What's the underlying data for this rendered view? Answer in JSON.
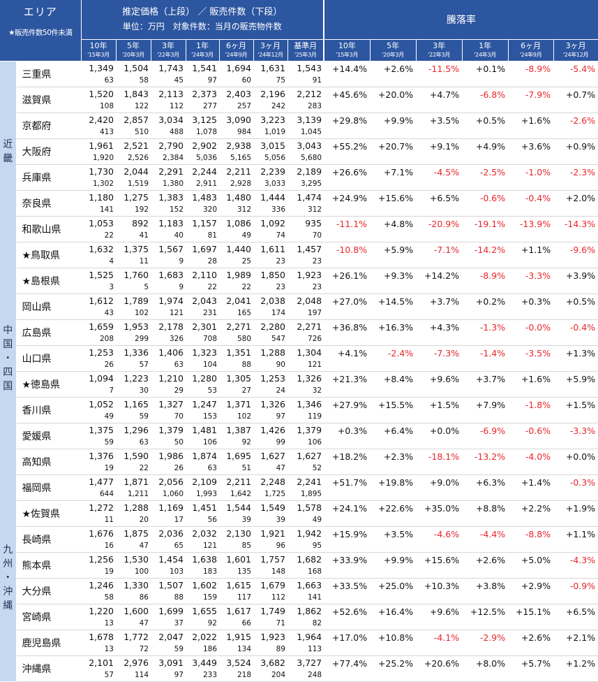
{
  "header": {
    "area_title": "エリア",
    "area_note": "★販売件数50件未満",
    "price_title": "推定価格（上段） ／ 販売件数（下段）",
    "price_unit": "単位：万円　対象件数：当月の販売物件数",
    "rate_title": "騰落率",
    "price_periods": [
      {
        "label": "10年",
        "sub": "'15年3月"
      },
      {
        "label": "5年",
        "sub": "'20年3月"
      },
      {
        "label": "3年",
        "sub": "'22年3月"
      },
      {
        "label": "1年",
        "sub": "'24年3月"
      },
      {
        "label": "6ヶ月",
        "sub": "'24年9月"
      },
      {
        "label": "3ヶ月",
        "sub": "'24年12月"
      },
      {
        "label": "基準月",
        "sub": "'25年3月"
      }
    ],
    "rate_periods": [
      {
        "label": "10年",
        "sub": "'15年3月"
      },
      {
        "label": "5年",
        "sub": "'20年3月"
      },
      {
        "label": "3年",
        "sub": "'22年3月"
      },
      {
        "label": "1年",
        "sub": "'24年3月"
      },
      {
        "label": "6ヶ月",
        "sub": "'24年9月"
      },
      {
        "label": "3ヶ月",
        "sub": "'24年12月"
      }
    ]
  },
  "regions": [
    {
      "label": [
        "近",
        "畿"
      ],
      "rows": [
        {
          "name": "三重県",
          "prices": [
            "1,349",
            "1,504",
            "1,743",
            "1,541",
            "1,694",
            "1,631",
            "1,543"
          ],
          "counts": [
            "63",
            "58",
            "45",
            "97",
            "60",
            "75",
            "91"
          ],
          "rates": [
            "+14.4%",
            "+2.6%",
            "-11.5%",
            "+0.1%",
            "-8.9%",
            "-5.4%"
          ]
        },
        {
          "name": "滋賀県",
          "prices": [
            "1,520",
            "1,843",
            "2,113",
            "2,373",
            "2,403",
            "2,196",
            "2,212"
          ],
          "counts": [
            "108",
            "122",
            "112",
            "277",
            "257",
            "242",
            "283"
          ],
          "rates": [
            "+45.6%",
            "+20.0%",
            "+4.7%",
            "-6.8%",
            "-7.9%",
            "+0.7%"
          ]
        },
        {
          "name": "京都府",
          "prices": [
            "2,420",
            "2,857",
            "3,034",
            "3,125",
            "3,090",
            "3,223",
            "3,139"
          ],
          "counts": [
            "413",
            "510",
            "488",
            "1,078",
            "984",
            "1,019",
            "1,045"
          ],
          "rates": [
            "+29.8%",
            "+9.9%",
            "+3.5%",
            "+0.5%",
            "+1.6%",
            "-2.6%"
          ]
        },
        {
          "name": "大阪府",
          "prices": [
            "1,961",
            "2,521",
            "2,790",
            "2,902",
            "2,938",
            "3,015",
            "3,043"
          ],
          "counts": [
            "1,920",
            "2,526",
            "2,384",
            "5,036",
            "5,165",
            "5,056",
            "5,680"
          ],
          "rates": [
            "+55.2%",
            "+20.7%",
            "+9.1%",
            "+4.9%",
            "+3.6%",
            "+0.9%"
          ]
        },
        {
          "name": "兵庫県",
          "prices": [
            "1,730",
            "2,044",
            "2,291",
            "2,244",
            "2,211",
            "2,239",
            "2,189"
          ],
          "counts": [
            "1,302",
            "1,519",
            "1,380",
            "2,911",
            "2,928",
            "3,033",
            "3,295"
          ],
          "rates": [
            "+26.6%",
            "+7.1%",
            "-4.5%",
            "-2.5%",
            "-1.0%",
            "-2.3%"
          ]
        },
        {
          "name": "奈良県",
          "prices": [
            "1,180",
            "1,275",
            "1,383",
            "1,483",
            "1,480",
            "1,444",
            "1,474"
          ],
          "counts": [
            "141",
            "192",
            "152",
            "320",
            "312",
            "336",
            "312"
          ],
          "rates": [
            "+24.9%",
            "+15.6%",
            "+6.5%",
            "-0.6%",
            "-0.4%",
            "+2.0%"
          ]
        },
        {
          "name": "和歌山県",
          "prices": [
            "1,053",
            "892",
            "1,183",
            "1,157",
            "1,086",
            "1,092",
            "935"
          ],
          "counts": [
            "22",
            "41",
            "40",
            "81",
            "49",
            "74",
            "70"
          ],
          "rates": [
            "-11.1%",
            "+4.8%",
            "-20.9%",
            "-19.1%",
            "-13.9%",
            "-14.3%"
          ]
        }
      ]
    },
    {
      "label": [
        "中",
        "国",
        "・",
        "四",
        "国"
      ],
      "rows": [
        {
          "name": "★鳥取県",
          "prices": [
            "1,632",
            "1,375",
            "1,567",
            "1,697",
            "1,440",
            "1,611",
            "1,457"
          ],
          "counts": [
            "4",
            "11",
            "9",
            "28",
            "25",
            "23",
            "23"
          ],
          "rates": [
            "-10.8%",
            "+5.9%",
            "-7.1%",
            "-14.2%",
            "+1.1%",
            "-9.6%"
          ]
        },
        {
          "name": "★島根県",
          "prices": [
            "1,525",
            "1,760",
            "1,683",
            "2,110",
            "1,989",
            "1,850",
            "1,923"
          ],
          "counts": [
            "3",
            "5",
            "9",
            "22",
            "22",
            "23",
            "23"
          ],
          "rates": [
            "+26.1%",
            "+9.3%",
            "+14.2%",
            "-8.9%",
            "-3.3%",
            "+3.9%"
          ]
        },
        {
          "name": "岡山県",
          "prices": [
            "1,612",
            "1,789",
            "1,974",
            "2,043",
            "2,041",
            "2,038",
            "2,048"
          ],
          "counts": [
            "43",
            "102",
            "121",
            "231",
            "165",
            "174",
            "197"
          ],
          "rates": [
            "+27.0%",
            "+14.5%",
            "+3.7%",
            "+0.2%",
            "+0.3%",
            "+0.5%"
          ]
        },
        {
          "name": "広島県",
          "prices": [
            "1,659",
            "1,953",
            "2,178",
            "2,301",
            "2,271",
            "2,280",
            "2,271"
          ],
          "counts": [
            "208",
            "299",
            "326",
            "708",
            "580",
            "547",
            "726"
          ],
          "rates": [
            "+36.8%",
            "+16.3%",
            "+4.3%",
            "-1.3%",
            "-0.0%",
            "-0.4%"
          ]
        },
        {
          "name": "山口県",
          "prices": [
            "1,253",
            "1,336",
            "1,406",
            "1,323",
            "1,351",
            "1,288",
            "1,304"
          ],
          "counts": [
            "26",
            "57",
            "63",
            "104",
            "88",
            "90",
            "121"
          ],
          "rates": [
            "+4.1%",
            "-2.4%",
            "-7.3%",
            "-1.4%",
            "-3.5%",
            "+1.3%"
          ]
        },
        {
          "name": "★徳島県",
          "prices": [
            "1,094",
            "1,223",
            "1,210",
            "1,280",
            "1,305",
            "1,253",
            "1,326"
          ],
          "counts": [
            "7",
            "30",
            "29",
            "53",
            "27",
            "24",
            "32"
          ],
          "rates": [
            "+21.3%",
            "+8.4%",
            "+9.6%",
            "+3.7%",
            "+1.6%",
            "+5.9%"
          ]
        },
        {
          "name": "香川県",
          "prices": [
            "1,052",
            "1,165",
            "1,327",
            "1,247",
            "1,371",
            "1,326",
            "1,346"
          ],
          "counts": [
            "49",
            "59",
            "70",
            "153",
            "102",
            "97",
            "119"
          ],
          "rates": [
            "+27.9%",
            "+15.5%",
            "+1.5%",
            "+7.9%",
            "-1.8%",
            "+1.5%"
          ]
        },
        {
          "name": "愛媛県",
          "prices": [
            "1,375",
            "1,296",
            "1,379",
            "1,481",
            "1,387",
            "1,426",
            "1,379"
          ],
          "counts": [
            "59",
            "63",
            "50",
            "106",
            "92",
            "99",
            "106"
          ],
          "rates": [
            "+0.3%",
            "+6.4%",
            "+0.0%",
            "-6.9%",
            "-0.6%",
            "-3.3%"
          ]
        },
        {
          "name": "高知県",
          "prices": [
            "1,376",
            "1,590",
            "1,986",
            "1,874",
            "1,695",
            "1,627",
            "1,627"
          ],
          "counts": [
            "19",
            "22",
            "26",
            "63",
            "51",
            "47",
            "52"
          ],
          "rates": [
            "+18.2%",
            "+2.3%",
            "-18.1%",
            "-13.2%",
            "-4.0%",
            "+0.0%"
          ]
        }
      ]
    },
    {
      "label": [
        "九",
        "州",
        "・",
        "沖",
        "縄"
      ],
      "rows": [
        {
          "name": "福岡県",
          "prices": [
            "1,477",
            "1,871",
            "2,056",
            "2,109",
            "2,211",
            "2,248",
            "2,241"
          ],
          "counts": [
            "644",
            "1,211",
            "1,060",
            "1,993",
            "1,642",
            "1,725",
            "1,895"
          ],
          "rates": [
            "+51.7%",
            "+19.8%",
            "+9.0%",
            "+6.3%",
            "+1.4%",
            "-0.3%"
          ]
        },
        {
          "name": "★佐賀県",
          "prices": [
            "1,272",
            "1,288",
            "1,169",
            "1,451",
            "1,544",
            "1,549",
            "1,578"
          ],
          "counts": [
            "11",
            "20",
            "17",
            "56",
            "39",
            "39",
            "49"
          ],
          "rates": [
            "+24.1%",
            "+22.6%",
            "+35.0%",
            "+8.8%",
            "+2.2%",
            "+1.9%"
          ]
        },
        {
          "name": "長崎県",
          "prices": [
            "1,676",
            "1,875",
            "2,036",
            "2,032",
            "2,130",
            "1,921",
            "1,942"
          ],
          "counts": [
            "16",
            "47",
            "65",
            "121",
            "85",
            "96",
            "95"
          ],
          "rates": [
            "+15.9%",
            "+3.5%",
            "-4.6%",
            "-4.4%",
            "-8.8%",
            "+1.1%"
          ]
        },
        {
          "name": "熊本県",
          "prices": [
            "1,256",
            "1,530",
            "1,454",
            "1,638",
            "1,601",
            "1,757",
            "1,682"
          ],
          "counts": [
            "19",
            "100",
            "103",
            "183",
            "135",
            "148",
            "168"
          ],
          "rates": [
            "+33.9%",
            "+9.9%",
            "+15.6%",
            "+2.6%",
            "+5.0%",
            "-4.3%"
          ]
        },
        {
          "name": "大分県",
          "prices": [
            "1,246",
            "1,330",
            "1,507",
            "1,602",
            "1,615",
            "1,679",
            "1,663"
          ],
          "counts": [
            "58",
            "86",
            "88",
            "159",
            "117",
            "112",
            "141"
          ],
          "rates": [
            "+33.5%",
            "+25.0%",
            "+10.3%",
            "+3.8%",
            "+2.9%",
            "-0.9%"
          ]
        },
        {
          "name": "宮崎県",
          "prices": [
            "1,220",
            "1,600",
            "1,699",
            "1,655",
            "1,617",
            "1,749",
            "1,862"
          ],
          "counts": [
            "13",
            "47",
            "37",
            "92",
            "66",
            "71",
            "82"
          ],
          "rates": [
            "+52.6%",
            "+16.4%",
            "+9.6%",
            "+12.5%",
            "+15.1%",
            "+6.5%"
          ]
        },
        {
          "name": "鹿児島県",
          "prices": [
            "1,678",
            "1,772",
            "2,047",
            "2,022",
            "1,915",
            "1,923",
            "1,964"
          ],
          "counts": [
            "13",
            "72",
            "59",
            "186",
            "134",
            "89",
            "113"
          ],
          "rates": [
            "+17.0%",
            "+10.8%",
            "-4.1%",
            "-2.9%",
            "+2.6%",
            "+2.1%"
          ]
        },
        {
          "name": "沖縄県",
          "prices": [
            "2,101",
            "2,976",
            "3,091",
            "3,449",
            "3,524",
            "3,682",
            "3,727"
          ],
          "counts": [
            "57",
            "114",
            "97",
            "233",
            "218",
            "204",
            "248"
          ],
          "rates": [
            "+77.4%",
            "+25.2%",
            "+20.6%",
            "+8.0%",
            "+5.7%",
            "+1.2%"
          ]
        }
      ]
    }
  ],
  "colors": {
    "header_bg": "#2d56a0",
    "region_bg": "#c5d8ef",
    "negative": "#e8262b"
  }
}
